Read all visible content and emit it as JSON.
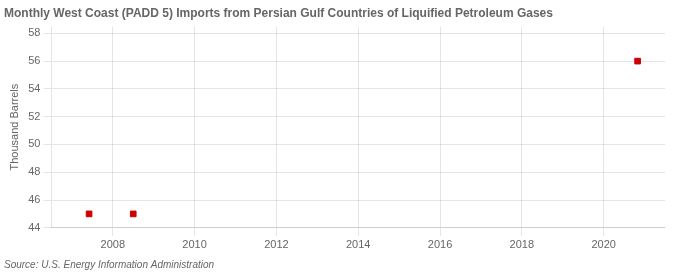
{
  "chart_data": {
    "type": "scatter",
    "title": "Monthly West Coast (PADD 5) Imports from Persian Gulf Countries of Liquified Petroleum Gases",
    "ylabel": "Thousand Barrels",
    "source": "Source: U.S. Energy Information Administration",
    "x": [
      2007.42,
      2008.5,
      2020.83
    ],
    "values": [
      45.0,
      45.0,
      56.0
    ],
    "color": "#cc0000",
    "marker": "square",
    "xlim": [
      2006.5,
      2021.5
    ],
    "xticks": [
      2008,
      2010,
      2012,
      2014,
      2016,
      2018,
      2020
    ],
    "ylim": [
      44,
      58.5
    ],
    "yticks": [
      44,
      46,
      48,
      50,
      52,
      54,
      56,
      58
    ],
    "grid": true
  }
}
